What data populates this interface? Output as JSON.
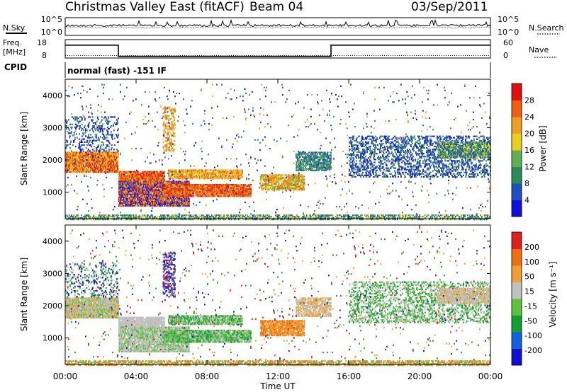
{
  "header": {
    "station": "Christmas Valley East (fitACF)",
    "beam": "Beam 04",
    "date": "03/Sep/2011"
  },
  "labels": {
    "nsky": "N.Sky",
    "nsearch": "N.Search",
    "freq": "Freq.",
    "freq_unit": "[MHz]",
    "nave": "Nave",
    "cpid": "CPID",
    "mode": "normal (fast) -151 IF",
    "xlabel": "Time UT",
    "ylabel": "Slant Range [km]",
    "power_label": "Power [dB]",
    "velocity_label": "Velocity [m s⁻¹]"
  },
  "chart_data": [
    {
      "type": "line",
      "name": "noise-panel",
      "ylabel": "N.Sky",
      "y2label": "N.Search",
      "y_ticks": [
        "10^5",
        "10^0"
      ],
      "y2_ticks": [
        "10^5",
        "10^0"
      ],
      "yscale": "log"
    },
    {
      "type": "line",
      "name": "frequency-panel",
      "ylabel": "Freq. [MHz]",
      "y2label": "Nave",
      "y_ticks": [
        18,
        8
      ],
      "y2_ticks": [
        60,
        0
      ],
      "ylim": [
        8,
        18
      ],
      "y2lim": [
        0,
        60
      ],
      "x_hours": [
        0,
        3,
        3,
        15,
        15,
        24
      ],
      "freq_mhz": [
        15,
        15,
        8.9,
        8.9,
        15,
        15
      ],
      "nave_x_hours": [
        0,
        24
      ],
      "nave": [
        8,
        8
      ]
    },
    {
      "type": "heatmap",
      "name": "power",
      "xlabel": "Time UT",
      "ylabel": "Slant Range [km]",
      "x_ticks": [
        "00:00",
        "04:00",
        "08:00",
        "12:00",
        "16:00",
        "20:00",
        "00:00"
      ],
      "xlim_hours": [
        0,
        24
      ],
      "y_ticks": [
        1000,
        2000,
        3000,
        4000
      ],
      "ylim": [
        180,
        4500
      ],
      "colorbar_label": "Power [dB]",
      "colorbar_ticks": [
        4,
        8,
        12,
        16,
        20,
        24,
        28
      ],
      "colorbar_range": [
        0,
        30
      ]
    },
    {
      "type": "heatmap",
      "name": "velocity",
      "xlabel": "Time UT",
      "ylabel": "Slant Range [km]",
      "x_ticks": [
        "00:00",
        "04:00",
        "08:00",
        "12:00",
        "16:00",
        "20:00",
        "00:00"
      ],
      "xlim_hours": [
        0,
        24
      ],
      "y_ticks": [
        1000,
        2000,
        3000,
        4000
      ],
      "ylim": [
        180,
        4500
      ],
      "colorbar_label": "Velocity [m s⁻¹]",
      "colorbar_ticks": [
        200,
        100,
        50,
        15,
        -15,
        -50,
        -100,
        -200
      ]
    }
  ],
  "palettes": {
    "power": [
      "#1010e0",
      "#2050c0",
      "#2a8a5a",
      "#60b050",
      "#e8d020",
      "#f0a020",
      "#f06010",
      "#e01010"
    ],
    "velocity": [
      "#1010d0",
      "#1060e0",
      "#10a030",
      "#60c040",
      "#c0c0c0",
      "#f0a030",
      "#f07010",
      "#e02020"
    ]
  }
}
